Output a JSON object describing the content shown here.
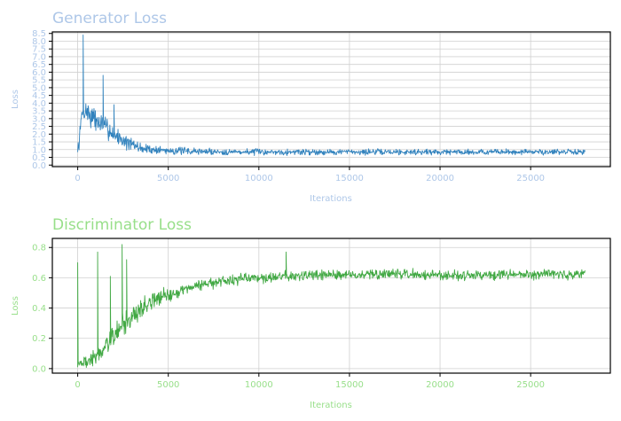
{
  "chart_data": [
    {
      "type": "line",
      "title": "Generator Loss",
      "xlabel": "Iterations",
      "ylabel": "Loss",
      "xlim": [
        -1400,
        29400
      ],
      "ylim": [
        -0.1,
        8.6
      ],
      "xticks": [
        0,
        5000,
        10000,
        15000,
        20000,
        25000
      ],
      "xtick_labels": [
        "0",
        "5000",
        "10000",
        "15000",
        "20000",
        "25000"
      ],
      "yticks": [
        0.0,
        0.5,
        1.0,
        1.5,
        2.0,
        2.5,
        3.0,
        3.5,
        4.0,
        4.5,
        5.0,
        5.5,
        6.0,
        6.5,
        7.0,
        7.5,
        8.0,
        8.5
      ],
      "ytick_labels": [
        "0.0",
        "0.5",
        "1.0",
        "1.5",
        "2.0",
        "2.5",
        "3.0",
        "3.5",
        "4.0",
        "4.5",
        "5.0",
        "5.5",
        "6.0",
        "6.5",
        "7.0",
        "7.5",
        "8.0",
        "8.5"
      ],
      "grid": true,
      "colors": {
        "line": "#3182bd",
        "label": "#aec7e8"
      },
      "series": [
        {
          "name": "",
          "x": [
            0,
            250,
            500,
            750,
            1000,
            1500,
            2000,
            2500,
            3000,
            3500,
            4000,
            5000,
            6000,
            7000,
            8000,
            10000,
            12000,
            15000,
            18000,
            20000,
            22000,
            25000,
            28000
          ],
          "values": [
            0.7,
            3.4,
            3.5,
            3.1,
            2.9,
            2.5,
            2.0,
            1.6,
            1.3,
            1.1,
            1.0,
            0.95,
            0.9,
            0.88,
            0.86,
            0.85,
            0.85,
            0.85,
            0.85,
            0.85,
            0.85,
            0.85,
            0.85
          ]
        }
      ],
      "spikes": [
        {
          "x": 300,
          "value": 8.4
        },
        {
          "x": 1400,
          "value": 5.8
        },
        {
          "x": 2000,
          "value": 3.9
        }
      ],
      "noise_envelope": {
        "x": [
          0,
          1000,
          2000,
          3000,
          4000,
          6000,
          10000,
          28000
        ],
        "amplitude": [
          0.9,
          0.9,
          0.7,
          0.55,
          0.35,
          0.28,
          0.25,
          0.22
        ]
      }
    },
    {
      "type": "line",
      "title": "Discriminator Loss",
      "xlabel": "Iterations",
      "ylabel": "Loss",
      "xlim": [
        -1400,
        29400
      ],
      "ylim": [
        -0.03,
        0.86
      ],
      "xticks": [
        0,
        5000,
        10000,
        15000,
        20000,
        25000
      ],
      "xtick_labels": [
        "0",
        "5000",
        "10000",
        "15000",
        "20000",
        "25000"
      ],
      "yticks": [
        0.0,
        0.2,
        0.4,
        0.6,
        0.8
      ],
      "ytick_labels": [
        "0.0",
        "0.2",
        "0.4",
        "0.6",
        "0.8"
      ],
      "grid": true,
      "colors": {
        "line": "#41a843",
        "label": "#98df8a"
      },
      "series": [
        {
          "name": "",
          "x": [
            0,
            500,
            1000,
            1500,
            2000,
            2500,
            3000,
            3500,
            4000,
            5000,
            6000,
            7000,
            8000,
            10000,
            12000,
            15000,
            18000,
            20000,
            25000,
            28000
          ],
          "values": [
            0.04,
            0.04,
            0.08,
            0.14,
            0.22,
            0.29,
            0.34,
            0.4,
            0.44,
            0.49,
            0.53,
            0.56,
            0.58,
            0.6,
            0.61,
            0.62,
            0.62,
            0.62,
            0.62,
            0.62
          ]
        }
      ],
      "spikes": [
        {
          "x": 0,
          "value": 0.7
        },
        {
          "x": 1100,
          "value": 0.77
        },
        {
          "x": 1800,
          "value": 0.61
        },
        {
          "x": 2450,
          "value": 0.82
        },
        {
          "x": 2700,
          "value": 0.72
        },
        {
          "x": 11500,
          "value": 0.77
        }
      ],
      "noise_envelope": {
        "x": [
          0,
          1000,
          2500,
          4000,
          6000,
          10000,
          28000
        ],
        "amplitude": [
          0.04,
          0.07,
          0.09,
          0.07,
          0.05,
          0.045,
          0.04
        ]
      }
    }
  ]
}
